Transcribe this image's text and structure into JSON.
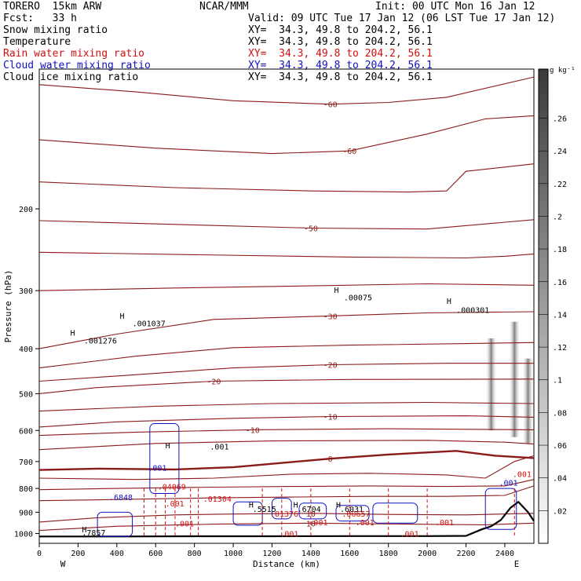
{
  "header": {
    "model": "TORERO  15km ARW",
    "org": "NCAR/MMM",
    "init": "Init: 00 UTC Mon 16 Jan 12",
    "fcst": "Fcst:   33 h",
    "valid": "Valid: 09 UTC Tue 17 Jan 12 (06 LST Tue 17 Jan 12)"
  },
  "fields": [
    {
      "name": "Snow mixing ratio",
      "color": "#000000",
      "xy": "XY=  34.3, 49.8 to 204.2, 56.1"
    },
    {
      "name": "Temperature",
      "color": "#000000",
      "xy": "XY=  34.3, 49.8 to 204.2, 56.1"
    },
    {
      "name": "Rain water mixing ratio",
      "color": "#d01010",
      "xy": "XY=  34.3, 49.8 to 204.2, 56.1"
    },
    {
      "name": "Cloud water mixing ratio",
      "color": "#1010c0",
      "xy": "XY=  34.3, 49.8 to 204.2, 56.1"
    },
    {
      "name": "Cloud ice mixing ratio",
      "color": "#000000",
      "xy": "XY=  34.3, 49.8 to 204.2, 56.1"
    }
  ],
  "colors": {
    "temperature": "#8b1a1a",
    "rain": "#d01010",
    "cloud_water": "#1010c0",
    "ice": "#000000",
    "ground": "#000000"
  },
  "chart_data": {
    "type": "line",
    "title": "",
    "xlabel": "Distance (km)",
    "ylabel": "Pressure (hPa)",
    "xlim": [
      0,
      2550
    ],
    "ylim": [
      1050,
      100
    ],
    "yscale": "log",
    "x_ticks": [
      0,
      200,
      400,
      600,
      800,
      1000,
      1200,
      1400,
      1600,
      1800,
      2000,
      2200,
      2400
    ],
    "y_ticks": [
      200,
      300,
      400,
      500,
      600,
      700,
      800,
      900,
      1000
    ],
    "endpoints": {
      "left": "W",
      "right": "E"
    },
    "temperature_isotherms": [
      {
        "label": "-60",
        "points": [
          [
            0,
            108
          ],
          [
            500,
            112
          ],
          [
            1000,
            117
          ],
          [
            1500,
            119
          ],
          [
            1800,
            118
          ],
          [
            2100,
            115
          ],
          [
            2550,
            104
          ]
        ]
      },
      {
        "label": "-60",
        "points": [
          [
            0,
            142
          ],
          [
            600,
            148
          ],
          [
            1200,
            152
          ],
          [
            1600,
            150
          ],
          [
            2000,
            138
          ],
          [
            2300,
            128
          ],
          [
            2550,
            126
          ]
        ]
      },
      {
        "label": "",
        "points": [
          [
            0,
            175
          ],
          [
            700,
            180
          ],
          [
            1400,
            183
          ],
          [
            1900,
            184
          ],
          [
            2100,
            183
          ],
          [
            2200,
            166
          ],
          [
            2550,
            160
          ]
        ]
      },
      {
        "label": "-50",
        "points": [
          [
            0,
            212
          ],
          [
            700,
            216
          ],
          [
            1400,
            220
          ],
          [
            2000,
            221
          ],
          [
            2550,
            211
          ]
        ]
      },
      {
        "label": "",
        "points": [
          [
            0,
            248
          ],
          [
            800,
            251
          ],
          [
            1600,
            254
          ],
          [
            2200,
            255
          ],
          [
            2400,
            253
          ],
          [
            2550,
            250
          ]
        ]
      },
      {
        "label": "",
        "points": [
          [
            0,
            300
          ],
          [
            700,
            296
          ],
          [
            1400,
            293
          ],
          [
            2000,
            290
          ],
          [
            2550,
            292
          ]
        ]
      },
      {
        "label": "-30",
        "points": [
          [
            0,
            400
          ],
          [
            400,
            372
          ],
          [
            900,
            346
          ],
          [
            1500,
            340
          ],
          [
            2000,
            335
          ],
          [
            2550,
            333
          ]
        ]
      },
      {
        "label": "",
        "points": [
          [
            0,
            440
          ],
          [
            500,
            415
          ],
          [
            1000,
            398
          ],
          [
            1600,
            393
          ],
          [
            2200,
            390
          ],
          [
            2550,
            388
          ]
        ]
      },
      {
        "label": "-20",
        "points": [
          [
            0,
            470
          ],
          [
            400,
            458
          ],
          [
            1000,
            440
          ],
          [
            1500,
            433
          ],
          [
            2100,
            430
          ],
          [
            2550,
            430
          ]
        ]
      },
      {
        "label": "-20",
        "points": [
          [
            0,
            500
          ],
          [
            300,
            485
          ],
          [
            900,
            470
          ],
          [
            1600,
            466
          ],
          [
            2550,
            465
          ]
        ]
      },
      {
        "label": "",
        "points": [
          [
            0,
            545
          ],
          [
            600,
            532
          ],
          [
            1200,
            525
          ],
          [
            2000,
            522
          ],
          [
            2550,
            525
          ]
        ]
      },
      {
        "label": "-10",
        "points": [
          [
            0,
            590
          ],
          [
            400,
            575
          ],
          [
            1000,
            565
          ],
          [
            1500,
            560
          ],
          [
            2200,
            558
          ],
          [
            2550,
            562
          ]
        ]
      },
      {
        "label": "-10",
        "points": [
          [
            0,
            615
          ],
          [
            500,
            605
          ],
          [
            1100,
            598
          ],
          [
            1800,
            595
          ],
          [
            2550,
            598
          ]
        ]
      },
      {
        "label": "",
        "points": [
          [
            0,
            660
          ],
          [
            600,
            640
          ],
          [
            1200,
            632
          ],
          [
            2000,
            630
          ],
          [
            2400,
            636
          ],
          [
            2550,
            642
          ]
        ]
      },
      {
        "label": "0",
        "points": [
          [
            0,
            730
          ],
          [
            300,
            725
          ],
          [
            700,
            728
          ],
          [
            1000,
            720
          ],
          [
            1500,
            690
          ],
          [
            1800,
            676
          ],
          [
            2150,
            664
          ],
          [
            2350,
            680
          ],
          [
            2550,
            688
          ]
        ]
      },
      {
        "label": "",
        "points": [
          [
            0,
            760
          ],
          [
            500,
            765
          ],
          [
            900,
            760
          ],
          [
            1300,
            745
          ],
          [
            1700,
            742
          ],
          [
            2100,
            748
          ],
          [
            2300,
            760
          ],
          [
            2450,
            700
          ],
          [
            2550,
            680
          ]
        ]
      },
      {
        "label": "",
        "points": [
          [
            0,
            805
          ],
          [
            400,
            800
          ],
          [
            900,
            795
          ],
          [
            1300,
            792
          ],
          [
            1700,
            790
          ],
          [
            2100,
            792
          ],
          [
            2400,
            790
          ],
          [
            2550,
            765
          ]
        ]
      },
      {
        "label": "",
        "points": [
          [
            0,
            850
          ],
          [
            400,
            845
          ],
          [
            900,
            838
          ],
          [
            1300,
            835
          ],
          [
            1700,
            832
          ],
          [
            2100,
            832
          ],
          [
            2400,
            828
          ],
          [
            2550,
            790
          ]
        ]
      },
      {
        "label": "10",
        "points": [
          [
            0,
            945
          ],
          [
            300,
            925
          ],
          [
            700,
            912
          ],
          [
            1000,
            908
          ],
          [
            1400,
            905
          ],
          [
            1800,
            910
          ],
          [
            2200,
            912
          ],
          [
            2550,
            905
          ]
        ]
      },
      {
        "label": "10",
        "points": [
          [
            0,
            985
          ],
          [
            400,
            965
          ],
          [
            900,
            955
          ],
          [
            1400,
            950
          ],
          [
            1900,
            955
          ],
          [
            2300,
            958
          ],
          [
            2550,
            950
          ]
        ]
      }
    ],
    "ground_surface": [
      [
        0,
        1015
      ],
      [
        400,
        1015
      ],
      [
        800,
        1014
      ],
      [
        1200,
        1014
      ],
      [
        1600,
        1013
      ],
      [
        2000,
        1013
      ],
      [
        2200,
        1012
      ],
      [
        2280,
        980
      ],
      [
        2330,
        965
      ],
      [
        2380,
        935
      ],
      [
        2430,
        880
      ],
      [
        2470,
        855
      ],
      [
        2520,
        900
      ],
      [
        2550,
        940
      ]
    ],
    "extrema_labels": [
      {
        "text": "H",
        "x": 160,
        "p": 375
      },
      {
        "text": ".001276",
        "x": 230,
        "p": 390
      },
      {
        "text": "H",
        "x": 415,
        "p": 345
      },
      {
        "text": ".001037",
        "x": 480,
        "p": 358
      },
      {
        "text": "H",
        "x": 1520,
        "p": 303
      },
      {
        "text": ".00075",
        "x": 1570,
        "p": 315
      },
      {
        "text": "H",
        "x": 2100,
        "p": 320
      },
      {
        "text": ".000301",
        "x": 2150,
        "p": 335
      },
      {
        "text": "H",
        "x": 650,
        "p": 655
      },
      {
        "text": ".001",
        "x": 880,
        "p": 660
      },
      {
        "text": "H",
        "x": 1080,
        "p": 880
      },
      {
        "text": ".5515",
        "x": 1100,
        "p": 898
      },
      {
        "text": "H",
        "x": 1310,
        "p": 880
      },
      {
        "text": ".6704",
        "x": 1330,
        "p": 898
      },
      {
        "text": "H",
        "x": 1530,
        "p": 880
      },
      {
        "text": ".6031",
        "x": 1550,
        "p": 898
      },
      {
        "text": "H",
        "x": 220,
        "p": 995
      },
      {
        "text": ".7857",
        "x": 220,
        "p": 1010
      }
    ],
    "rain_labels": [
      {
        "text": ".04069",
        "x": 610,
        "p": 805
      },
      {
        "text": ".01304",
        "x": 845,
        "p": 855
      },
      {
        "text": ".001",
        "x": 650,
        "p": 875
      },
      {
        "text": ".001",
        "x": 700,
        "p": 965
      },
      {
        "text": ".01376",
        "x": 1190,
        "p": 920
      },
      {
        "text": ".00657",
        "x": 1560,
        "p": 920
      },
      {
        "text": ".001",
        "x": 1390,
        "p": 960
      },
      {
        "text": ".001",
        "x": 1630,
        "p": 960
      },
      {
        "text": ".001",
        "x": 1240,
        "p": 1015
      },
      {
        "text": ".001",
        "x": 1860,
        "p": 1015
      },
      {
        "text": ".001",
        "x": 2040,
        "p": 960
      },
      {
        "text": ".001",
        "x": 2440,
        "p": 755
      }
    ],
    "cloud_water_labels": [
      {
        "text": ".6848",
        "x": 360,
        "p": 848
      },
      {
        "text": ".001",
        "x": 560,
        "p": 733
      },
      {
        "text": ".001",
        "x": 2370,
        "p": 788
      }
    ],
    "colorbar": {
      "unit": "g kg⁻¹",
      "ticks": [
        ".02",
        ".04",
        ".06",
        ".08",
        ".1",
        ".12",
        ".14",
        ".16",
        ".18",
        ".2",
        ".22",
        ".24",
        ".26"
      ]
    },
    "grid": false
  }
}
